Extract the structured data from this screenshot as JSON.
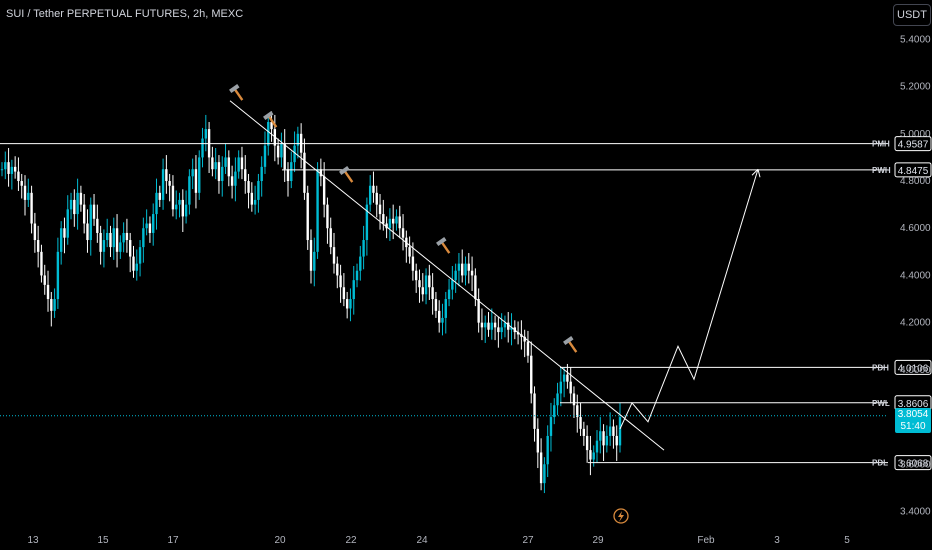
{
  "header": {
    "title": "SUI / Tether PERPETUAL FUTURES, 2h, MEXC",
    "currency": "USDT"
  },
  "colors": {
    "up": "#00bcd4",
    "down": "#ffffff",
    "background": "#000000",
    "current_price": "#00bcd4"
  },
  "chart_data": {
    "type": "candlestick",
    "x_axis": {
      "ticks": [
        "13",
        "15",
        "17",
        "20",
        "22",
        "24",
        "27",
        "29",
        "Feb",
        "3",
        "5"
      ]
    },
    "y_axis": {
      "ticks": [
        "5.4000",
        "5.2000",
        "5.0000",
        "4.8000",
        "4.6000",
        "4.4000",
        "4.2000",
        "4.0000",
        "3.8000",
        "3.6000",
        "3.4000"
      ],
      "ylim": [
        3.33,
        5.55
      ]
    },
    "levels": [
      {
        "label": "PMH",
        "value": 4.9587
      },
      {
        "label": "PWH",
        "value": 4.8475
      },
      {
        "label": "PDH",
        "value": 4.0106
      },
      {
        "label": "PWL",
        "value": 3.8606
      },
      {
        "label": "PDL",
        "value": 3.6068
      }
    ],
    "current_price": {
      "value": 3.8054,
      "countdown": "51:40"
    },
    "trendline": {
      "from_date": "Jan 18",
      "from": 5.14,
      "to_date": "Jan 30",
      "to": 3.66
    },
    "projection": [
      3.75,
      3.86,
      3.78,
      4.1,
      3.96,
      4.85
    ],
    "marker_icon": "hammer-icon",
    "footer_icon": "lightning-icon",
    "series": [
      {
        "values": [
          4.85,
          4.88,
          4.83,
          4.86,
          4.84,
          4.8,
          4.78,
          4.72,
          4.75,
          4.62,
          4.55,
          4.5,
          4.4,
          4.36,
          4.3,
          4.25,
          4.3,
          4.5,
          4.6,
          4.56,
          4.68,
          4.72,
          4.66,
          4.75,
          4.7,
          4.62,
          4.55,
          4.7,
          4.64,
          4.58,
          4.5,
          4.55,
          4.58,
          4.52,
          4.6,
          4.5,
          4.54,
          4.58,
          4.55,
          4.48,
          4.42,
          4.45,
          4.52,
          4.6,
          4.62,
          4.58,
          4.66,
          4.75,
          4.72,
          4.85,
          4.8,
          4.78,
          4.68,
          4.7,
          4.72,
          4.65,
          4.7,
          4.82,
          4.85,
          4.75,
          4.9,
          4.98,
          5.02,
          4.9,
          4.85,
          4.88,
          4.8,
          4.86,
          4.9,
          4.82,
          4.78,
          4.84,
          4.9,
          4.85,
          4.8,
          4.75,
          4.7,
          4.72,
          4.8,
          4.86,
          4.95,
          5.05,
          5.02,
          4.95,
          4.9,
          4.96,
          4.85,
          4.8,
          4.88,
          4.95,
          5.0,
          4.92,
          4.75,
          4.55,
          4.42,
          4.5,
          4.85,
          4.82,
          4.7,
          4.6,
          4.52,
          4.45,
          4.4,
          4.35,
          4.3,
          4.26,
          4.3,
          4.38,
          4.42,
          4.48,
          4.55,
          4.7,
          4.78,
          4.75,
          4.7,
          4.66,
          4.62,
          4.6,
          4.64,
          4.62,
          4.65,
          4.6,
          4.56,
          4.52,
          4.48,
          4.42,
          4.38,
          4.35,
          4.32,
          4.4,
          4.35,
          4.3,
          4.25,
          4.2,
          4.22,
          4.3,
          4.34,
          4.38,
          4.42,
          4.45,
          4.4,
          4.45,
          4.42,
          4.4,
          4.3,
          4.2,
          4.18,
          4.2,
          4.17,
          4.2,
          4.18,
          4.16,
          4.18,
          4.2,
          4.17,
          4.18,
          4.16,
          4.15,
          4.14,
          4.12,
          4.06,
          3.9,
          3.75,
          3.65,
          3.52,
          3.6,
          3.72,
          3.8,
          3.85,
          3.9,
          3.95,
          3.98,
          3.95,
          3.9,
          3.85,
          3.8,
          3.75,
          3.72,
          3.66,
          3.62,
          3.65,
          3.7,
          3.74,
          3.68,
          3.72,
          3.76,
          3.72,
          3.68,
          3.8
        ]
      }
    ]
  }
}
